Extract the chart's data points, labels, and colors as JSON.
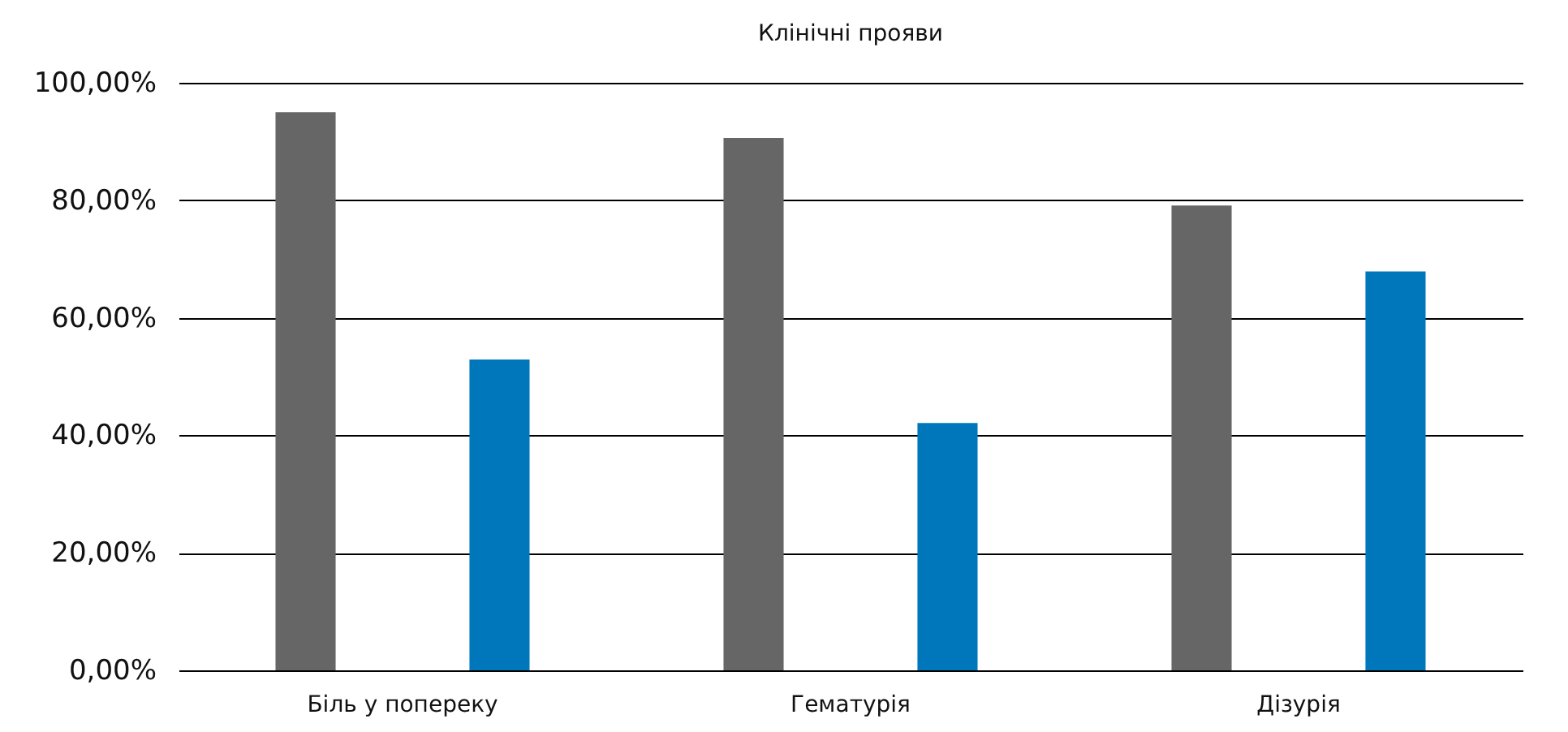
{
  "chart_data": {
    "type": "bar",
    "title": "Клінічні прояви",
    "categories": [
      "Біль у попереку",
      "Гематурія",
      "Дізурія"
    ],
    "series": [
      {
        "color": "#666666",
        "values": [
          95.0,
          90.6,
          79.1
        ]
      },
      {
        "color": "#0077bb",
        "values": [
          52.9,
          42.1,
          67.9
        ]
      }
    ],
    "ylim": [
      0,
      100
    ],
    "yticks": [
      {
        "value": 0,
        "label": "0,00%"
      },
      {
        "value": 20,
        "label": "20,00%"
      },
      {
        "value": 40,
        "label": "40,00%"
      },
      {
        "value": 60,
        "label": "60,00%"
      },
      {
        "value": 80,
        "label": "80,00%"
      },
      {
        "value": 100,
        "label": "100,00%"
      }
    ],
    "grid": "y",
    "legend": false
  }
}
